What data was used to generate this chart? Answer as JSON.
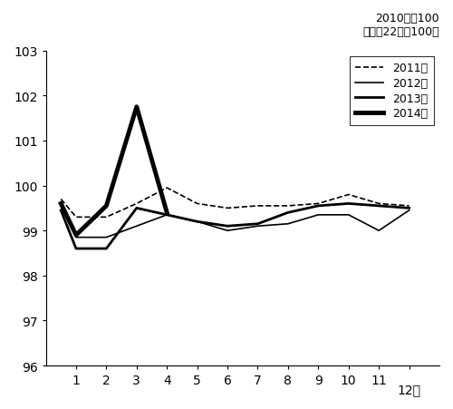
{
  "title_line1": "2010年＝100",
  "title_line2": "（平成22年＝100）",
  "ylim": [
    96,
    103
  ],
  "yticks": [
    96,
    97,
    98,
    99,
    100,
    101,
    102,
    103
  ],
  "xlim": [
    0,
    13
  ],
  "xticks": [
    1,
    2,
    3,
    4,
    5,
    6,
    7,
    8,
    9,
    10,
    11,
    12
  ],
  "xticklabels_no12": [
    "1",
    "2",
    "3",
    "4",
    "5",
    "6",
    "7",
    "8",
    "9",
    "10",
    "11",
    ""
  ],
  "series": {
    "2011年": {
      "x": [
        0.5,
        1,
        2,
        3,
        4,
        5,
        6,
        7,
        8,
        9,
        10,
        11,
        12
      ],
      "y": [
        99.7,
        99.3,
        99.3,
        99.6,
        99.95,
        99.6,
        99.5,
        99.55,
        99.55,
        99.6,
        99.8,
        99.6,
        99.55
      ],
      "linestyle": "dashed",
      "linewidth": 1.2,
      "color": "#000000"
    },
    "2012年": {
      "x": [
        0.5,
        1,
        2,
        3,
        4,
        5,
        6,
        7,
        8,
        9,
        10,
        11,
        12
      ],
      "y": [
        99.55,
        98.85,
        98.85,
        99.1,
        99.35,
        99.2,
        99.0,
        99.1,
        99.15,
        99.35,
        99.35,
        99.0,
        99.45
      ],
      "linestyle": "solid",
      "linewidth": 1.2,
      "color": "#000000"
    },
    "2013年": {
      "x": [
        0.5,
        1,
        2,
        3,
        4,
        5,
        6,
        7,
        8,
        9,
        10,
        11,
        12
      ],
      "y": [
        99.45,
        98.6,
        98.6,
        99.5,
        99.35,
        99.2,
        99.1,
        99.15,
        99.4,
        99.55,
        99.6,
        99.55,
        99.5
      ],
      "linestyle": "solid",
      "linewidth": 2.0,
      "color": "#000000"
    },
    "2014年": {
      "x": [
        0.5,
        1,
        2,
        3,
        4
      ],
      "y": [
        99.6,
        98.9,
        99.55,
        101.75,
        99.4
      ],
      "linestyle": "solid",
      "linewidth": 3.5,
      "color": "#000000"
    }
  },
  "legend_order": [
    "2011年",
    "2012年",
    "2013年",
    "2014年"
  ],
  "legend_linewidths": [
    1.2,
    1.2,
    2.0,
    3.5
  ],
  "legend_linestyles": [
    "dashed",
    "solid",
    "solid",
    "solid"
  ],
  "background_color": "#ffffff",
  "font_size_tick": 10,
  "font_size_title": 9,
  "font_size_legend": 9
}
